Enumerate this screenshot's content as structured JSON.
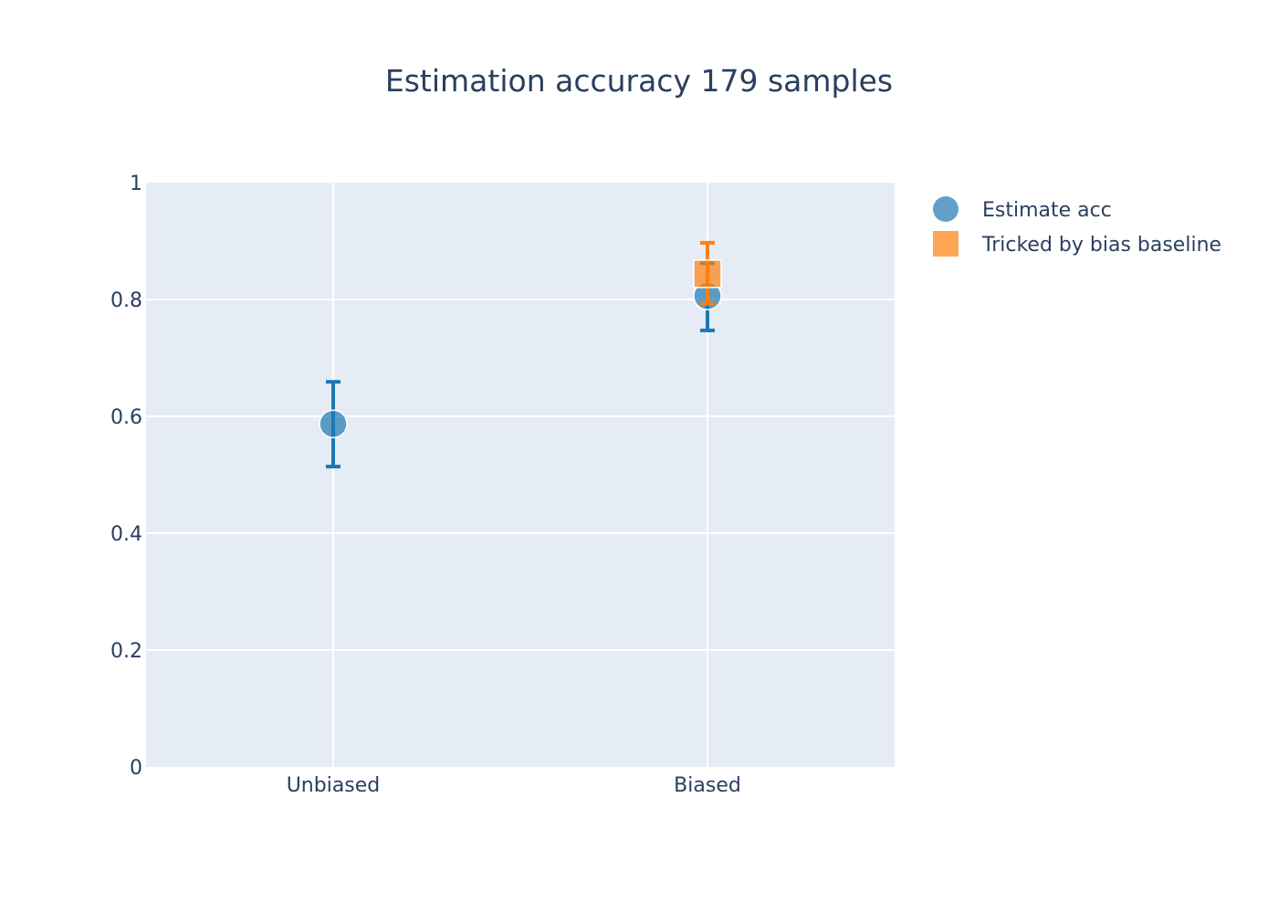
{
  "chart_data": {
    "type": "scatter",
    "title": "Estimation accuracy 179 samples",
    "xlabel": "",
    "ylabel": "",
    "categories": [
      "Unbiased",
      "Biased"
    ],
    "ylim": [
      0,
      1
    ],
    "yticks": [
      "0",
      "0.2",
      "0.4",
      "0.6",
      "0.8",
      "1"
    ],
    "grid": true,
    "legend_position": "top-right",
    "series": [
      {
        "name": "Estimate acc",
        "marker": "circle",
        "color": "#1f77b4",
        "values": [
          0.587,
          0.806
        ],
        "error_low": [
          0.514,
          0.747
        ],
        "error_high": [
          0.659,
          0.862
        ]
      },
      {
        "name": "Tricked by bias baseline",
        "marker": "square",
        "color": "#ff7f0e",
        "values": [
          null,
          0.844
        ],
        "error_low": [
          null,
          0.793
        ],
        "error_high": [
          null,
          0.897
        ]
      }
    ]
  },
  "colors": {
    "plot_background": "#e5ecf6",
    "grid": "#ffffff",
    "text": "#2a3f5f"
  }
}
